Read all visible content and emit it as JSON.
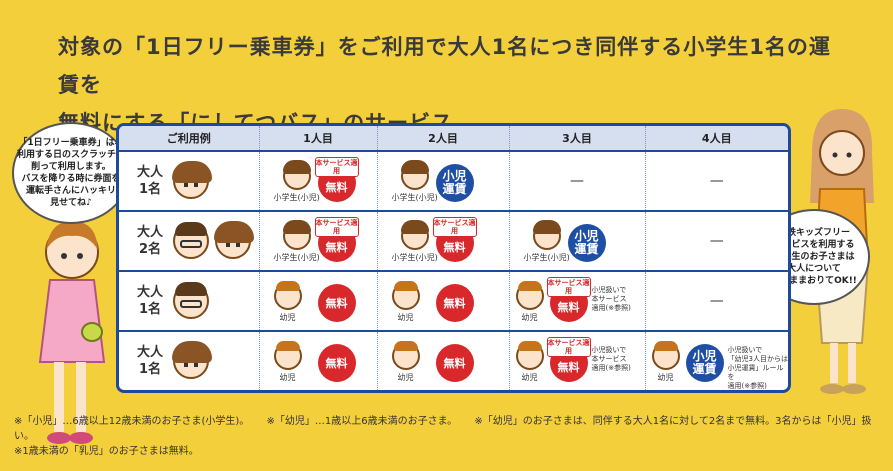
{
  "headline": {
    "line1": "対象の「1日フリー乗車券」をご利用で大人1名につき同伴する小学生1名の運賃を",
    "line2": "無料にする「にしてつバス」のサービス。"
  },
  "speech": {
    "left": [
      "「1日フリー乗車券」は、",
      "利用する日のスクラッチを",
      "削って利用します。",
      "バスを降りる時に券面を",
      "運転手さんにハッキリ",
      "見せてね♪"
    ],
    "right": [
      "西鉄キッズフリー",
      "サービスを利用する",
      "小学生のお子さまは",
      "大人について",
      "そのままおりてOK!!"
    ]
  },
  "table": {
    "headers": [
      "ご利用例",
      "1人目",
      "2人目",
      "3人目",
      "4人目"
    ],
    "rows": [
      {
        "label": "大人\n1名",
        "cells": [
          {
            "kid": "小学生(小児)",
            "badge": "red",
            "tag": "本サービス適用",
            "text": "無料"
          },
          {
            "kid": "小学生(小児)",
            "badge": "blue",
            "text": "小児\n運賃"
          },
          {
            "dash": "—"
          },
          {
            "dash": "—"
          }
        ]
      },
      {
        "label": "大人\n2名",
        "cells": [
          {
            "kid": "小学生(小児)",
            "badge": "red",
            "tag": "本サービス適用",
            "text": "無料"
          },
          {
            "kid": "小学生(小児)",
            "badge": "red",
            "tag": "本サービス適用",
            "text": "無料"
          },
          {
            "kid": "小学生(小児)",
            "badge": "blue",
            "text": "小児\n運賃"
          },
          {
            "dash": "—"
          }
        ]
      },
      {
        "label": "大人\n1名",
        "cells": [
          {
            "kid": "幼児",
            "badge": "red",
            "text": "無料"
          },
          {
            "kid": "幼児",
            "badge": "red",
            "text": "無料"
          },
          {
            "kid": "幼児",
            "badge": "red",
            "tag": "本サービス適用",
            "text": "無料",
            "note": "小児扱いで\n本サービス\n適用(※参照)"
          },
          {
            "dash": "—"
          }
        ]
      },
      {
        "label": "大人\n1名",
        "cells": [
          {
            "kid": "幼児",
            "badge": "red",
            "text": "無料"
          },
          {
            "kid": "幼児",
            "badge": "red",
            "text": "無料"
          },
          {
            "kid": "幼児",
            "badge": "red",
            "tag": "本サービス適用",
            "text": "無料",
            "note": "小児扱いで\n本サービス\n適用(※参照)"
          },
          {
            "kid": "幼児",
            "badge": "blue",
            "text": "小児\n運賃",
            "note": "小児扱いで\n「幼児3人目からは\n小児運賃」ルールを\n適用(※参照)"
          }
        ]
      }
    ]
  },
  "footnotes": {
    "f1": "※「小児」…6歳以上12歳未満のお子さま(小学生)。",
    "f2": "※「幼児」…1歳以上6歳未満のお子さま。",
    "f3": "※「幼児」のお子さまは、同伴する大人1名に対して2名まで無料。3名からは「小児」扱い。",
    "f4": "※1歳未満の「乳児」のお子さまは無料。"
  },
  "colors": {
    "background": "#f4cf3c",
    "table_border": "#1e4a9a",
    "free_badge": "#d8282b",
    "fare_badge": "#1e4fa5"
  }
}
